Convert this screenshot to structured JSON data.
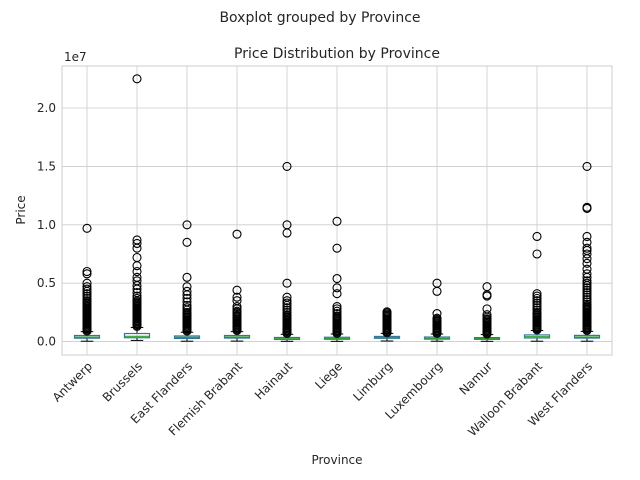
{
  "chart_data": {
    "type": "boxplot",
    "suptitle": "Boxplot grouped by Province",
    "title": "Price Distribution by Province",
    "xlabel": "Province",
    "ylabel": "Price",
    "y_offset_label": "1e7",
    "ylim": [
      -1150000,
      23600000
    ],
    "yticks": [
      0,
      5000000,
      10000000,
      15000000,
      20000000
    ],
    "ytick_labels": [
      "0.0",
      "0.5",
      "1.0",
      "1.5",
      "2.0"
    ],
    "grid": true,
    "categories": [
      "Antwerp",
      "Brussels",
      "East Flanders",
      "Flemish Brabant",
      "Hainaut",
      "Liege",
      "Limburg",
      "Luxembourg",
      "Namur",
      "Walloon Brabant",
      "West Flanders"
    ],
    "boxes": [
      {
        "whisker_low": 30000,
        "q1": 290000,
        "median": 380000,
        "q3": 520000,
        "whisker_high": 850000,
        "outliers": [
          900000,
          1000000,
          1100000,
          1200000,
          1300000,
          1400000,
          1500000,
          1600000,
          1700000,
          1800000,
          1900000,
          2000000,
          2100000,
          2200000,
          2300000,
          2400000,
          2500000,
          2600000,
          2700000,
          2800000,
          2900000,
          3000000,
          3100000,
          3200000,
          3300000,
          3400000,
          3500000,
          3700000,
          3900000,
          4100000,
          4300000,
          4500000,
          4700000,
          5000000,
          5800000,
          6000000,
          9700000
        ]
      },
      {
        "whisker_low": 100000,
        "q1": 330000,
        "median": 450000,
        "q3": 690000,
        "whisker_high": 1200000,
        "outliers": [
          1300000,
          1400000,
          1500000,
          1600000,
          1700000,
          1800000,
          1900000,
          2000000,
          2100000,
          2200000,
          2300000,
          2400000,
          2500000,
          2600000,
          2700000,
          2800000,
          2900000,
          3000000,
          3100000,
          3200000,
          3300000,
          3400000,
          3500000,
          3700000,
          3900000,
          4200000,
          4500000,
          4800000,
          5200000,
          5500000,
          6000000,
          6500000,
          7200000,
          8000000,
          8400000,
          8700000,
          22500000
        ]
      },
      {
        "whisker_low": 30000,
        "q1": 270000,
        "median": 360000,
        "q3": 480000,
        "whisker_high": 800000,
        "outliers": [
          900000,
          1000000,
          1100000,
          1200000,
          1300000,
          1400000,
          1500000,
          1600000,
          1700000,
          1800000,
          1900000,
          2000000,
          2100000,
          2200000,
          2300000,
          2400000,
          2500000,
          2700000,
          2900000,
          3100000,
          3400000,
          3700000,
          4000000,
          4300000,
          4700000,
          5500000,
          8500000,
          10000000
        ]
      },
      {
        "whisker_low": 40000,
        "q1": 300000,
        "median": 390000,
        "q3": 520000,
        "whisker_high": 850000,
        "outliers": [
          950000,
          1050000,
          1150000,
          1250000,
          1350000,
          1450000,
          1550000,
          1650000,
          1750000,
          1850000,
          1950000,
          2050000,
          2150000,
          2250000,
          2400000,
          2500000,
          2600000,
          2800000,
          3000000,
          3500000,
          3800000,
          4400000,
          9200000
        ]
      },
      {
        "whisker_low": 20000,
        "q1": 180000,
        "median": 240000,
        "q3": 350000,
        "whisker_high": 620000,
        "outliers": [
          700000,
          800000,
          900000,
          1000000,
          1100000,
          1200000,
          1300000,
          1400000,
          1500000,
          1600000,
          1700000,
          1800000,
          1900000,
          2000000,
          2100000,
          2200000,
          2300000,
          2500000,
          2700000,
          2900000,
          3100000,
          3300000,
          3500000,
          3800000,
          5000000,
          9300000,
          10000000,
          15000000
        ]
      },
      {
        "whisker_low": 20000,
        "q1": 200000,
        "median": 270000,
        "q3": 370000,
        "whisker_high": 650000,
        "outliers": [
          700000,
          800000,
          900000,
          1000000,
          1100000,
          1200000,
          1300000,
          1400000,
          1500000,
          1600000,
          1700000,
          1800000,
          1900000,
          2000000,
          2100000,
          2200000,
          2400000,
          2600000,
          2800000,
          3000000,
          4100000,
          4600000,
          5400000,
          8000000,
          10300000
        ]
      },
      {
        "whisker_low": 50000,
        "q1": 280000,
        "median": 350000,
        "q3": 440000,
        "whisker_high": 700000,
        "outliers": [
          750000,
          850000,
          950000,
          1050000,
          1150000,
          1250000,
          1350000,
          1450000,
          1550000,
          1650000,
          1750000,
          1850000,
          1950000,
          2050000,
          2150000,
          2250000,
          2350000,
          2450000,
          2550000
        ]
      },
      {
        "whisker_low": 30000,
        "q1": 210000,
        "median": 280000,
        "q3": 390000,
        "whisker_high": 650000,
        "outliers": [
          700000,
          800000,
          900000,
          1000000,
          1100000,
          1200000,
          1300000,
          1400000,
          1500000,
          1600000,
          1700000,
          1800000,
          1900000,
          2000000,
          2400000,
          4300000,
          5000000
        ]
      },
      {
        "whisker_low": 20000,
        "q1": 190000,
        "median": 250000,
        "q3": 340000,
        "whisker_high": 600000,
        "outliers": [
          650000,
          750000,
          850000,
          950000,
          1050000,
          1150000,
          1250000,
          1350000,
          1450000,
          1550000,
          1650000,
          1750000,
          1850000,
          1950000,
          2100000,
          2300000,
          2800000,
          3900000,
          4000000,
          4700000
        ]
      },
      {
        "whisker_low": 30000,
        "q1": 310000,
        "median": 420000,
        "q3": 570000,
        "whisker_high": 950000,
        "outliers": [
          1000000,
          1100000,
          1200000,
          1300000,
          1400000,
          1500000,
          1600000,
          1700000,
          1800000,
          1900000,
          2000000,
          2100000,
          2200000,
          2300000,
          2400000,
          2500000,
          2700000,
          2900000,
          3100000,
          3300000,
          3500000,
          3700000,
          3900000,
          4100000,
          7500000,
          9000000
        ]
      },
      {
        "whisker_low": 30000,
        "q1": 300000,
        "median": 390000,
        "q3": 530000,
        "whisker_high": 870000,
        "outliers": [
          950000,
          1050000,
          1150000,
          1250000,
          1350000,
          1450000,
          1550000,
          1650000,
          1750000,
          1850000,
          1950000,
          2050000,
          2150000,
          2250000,
          2350000,
          2450000,
          2550000,
          2650000,
          2750000,
          2850000,
          2950000,
          3050000,
          3200000,
          3400000,
          3600000,
          3800000,
          4000000,
          4200000,
          4400000,
          4600000,
          4800000,
          5000000,
          5200000,
          5500000,
          5800000,
          6200000,
          6700000,
          7100000,
          7500000,
          7800000,
          8000000,
          8500000,
          9000000,
          11400000,
          11500000,
          15000000
        ]
      }
    ],
    "colors": {
      "box": "#3274a1",
      "median": "#2ca02c",
      "whisker": "#000000",
      "outlier": "#000000",
      "grid": "#cccccc",
      "frame": "#cccccc"
    }
  }
}
